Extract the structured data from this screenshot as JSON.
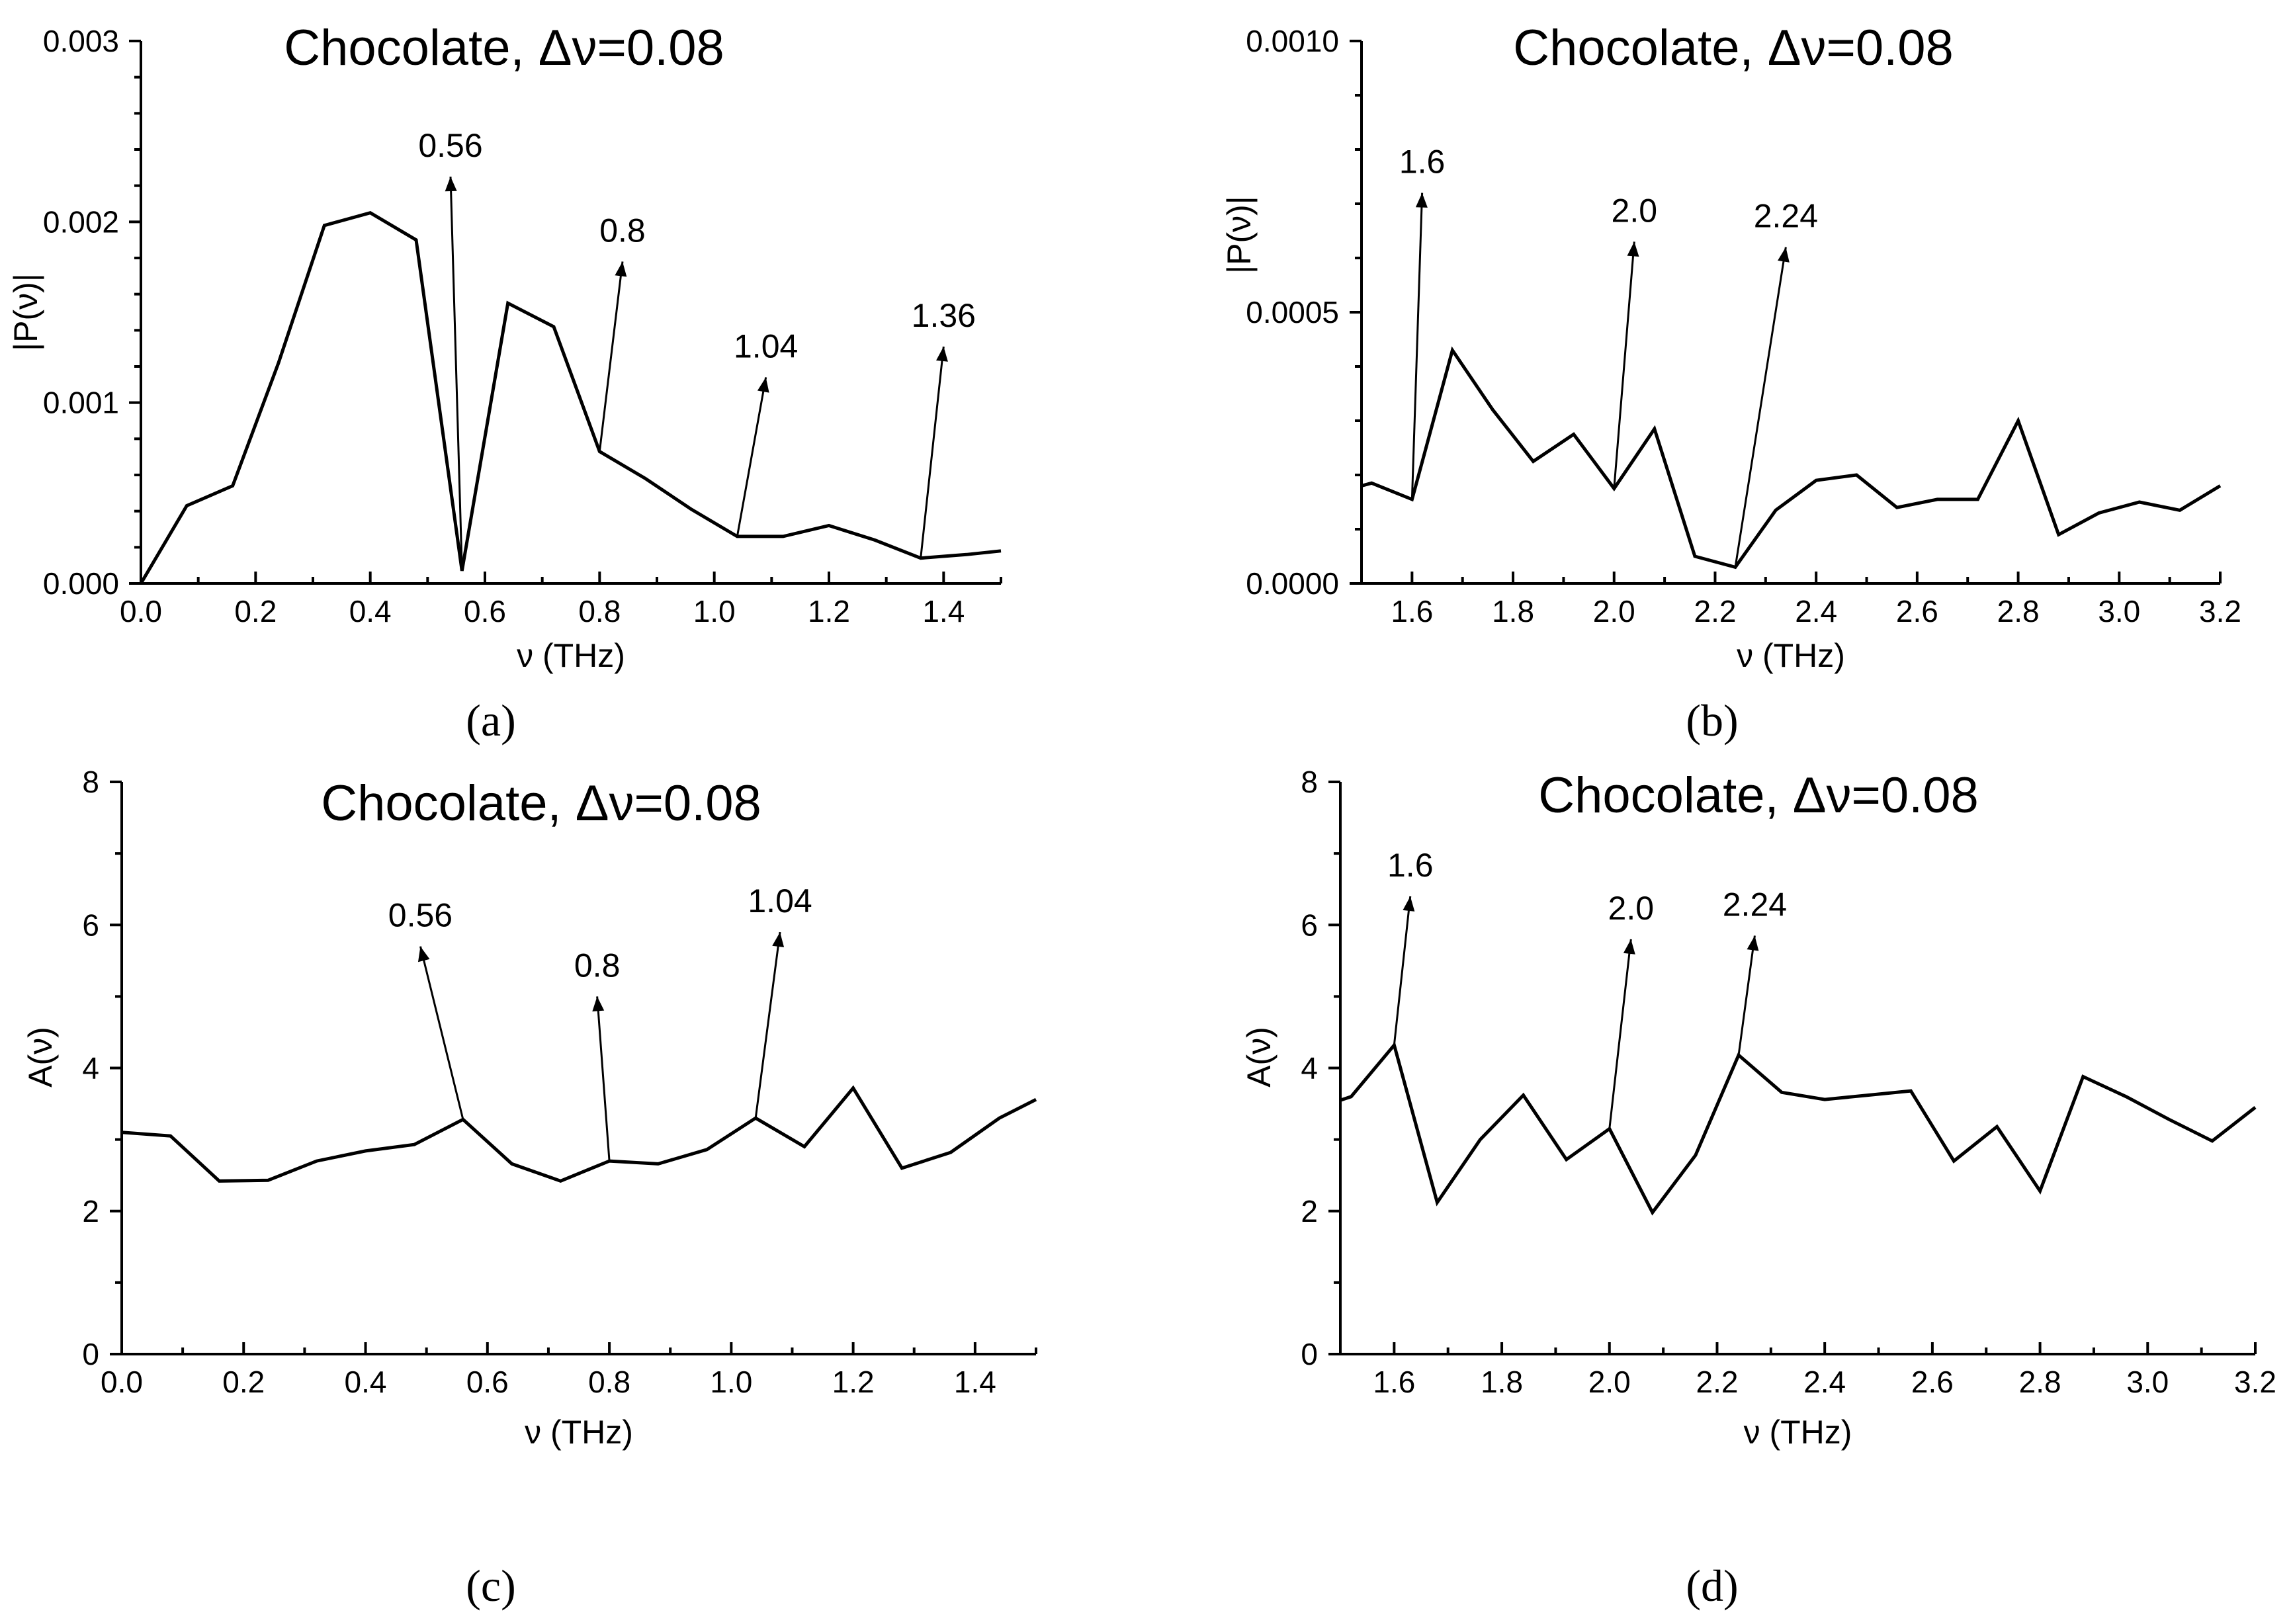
{
  "chart_data": [
    {
      "id": "a",
      "type": "line",
      "panel_label": "(a)",
      "title": "Chocolate, Δν=0.08",
      "xlabel": "ν (THz)",
      "ylabel": "|P(ν)|",
      "xlim": [
        0.0,
        1.5
      ],
      "ylim": [
        0.0,
        0.003
      ],
      "xticks": [
        0.0,
        0.2,
        0.4,
        0.6,
        0.8,
        1.0,
        1.2,
        1.4
      ],
      "xtick_labels": [
        "0.0",
        "0.2",
        "0.4",
        "0.6",
        "0.8",
        "1.0",
        "1.2",
        "1.4"
      ],
      "yticks": [
        0.0,
        0.001,
        0.002,
        0.003
      ],
      "ytick_labels": [
        "0.000",
        "0.001",
        "0.002",
        "0.003"
      ],
      "x": [
        0.0,
        0.08,
        0.16,
        0.24,
        0.32,
        0.4,
        0.48,
        0.56,
        0.64,
        0.72,
        0.8,
        0.88,
        0.96,
        1.04,
        1.12,
        1.2,
        1.28,
        1.36,
        1.44,
        1.5
      ],
      "y": [
        0.0,
        0.00043,
        0.00054,
        0.00122,
        0.00198,
        0.00205,
        0.0019,
        7e-05,
        0.00155,
        0.00142,
        0.00073,
        0.00058,
        0.00041,
        0.00026,
        0.00026,
        0.00032,
        0.00024,
        0.00014,
        0.00016,
        0.00018
      ],
      "annotations": [
        {
          "text": "0.56",
          "x": 0.56,
          "y": 7e-05,
          "tx": 0.54,
          "ty": 0.00225
        },
        {
          "text": "0.8",
          "x": 0.8,
          "y": 0.00073,
          "tx": 0.84,
          "ty": 0.00178
        },
        {
          "text": "1.04",
          "x": 1.04,
          "y": 0.00026,
          "tx": 1.09,
          "ty": 0.00114
        },
        {
          "text": "1.36",
          "x": 1.36,
          "y": 0.00014,
          "tx": 1.4,
          "ty": 0.00131
        }
      ]
    },
    {
      "id": "b",
      "type": "line",
      "panel_label": "(b)",
      "title": "Chocolate, Δν=0.08",
      "xlabel": "ν (THz)",
      "ylabel": "|P(ν)|",
      "xlim": [
        1.5,
        3.2
      ],
      "ylim": [
        0.0,
        0.001
      ],
      "xticks": [
        1.6,
        1.8,
        2.0,
        2.2,
        2.4,
        2.6,
        2.8,
        3.0,
        3.2
      ],
      "xtick_labels": [
        "1.6",
        "1.8",
        "2.0",
        "2.2",
        "2.4",
        "2.6",
        "2.8",
        "3.0",
        "3.2"
      ],
      "yticks": [
        0.0,
        0.0005,
        0.001
      ],
      "ytick_labels": [
        "0.0000",
        "0.0005",
        "0.0010"
      ],
      "x": [
        1.5,
        1.52,
        1.6,
        1.68,
        1.76,
        1.84,
        1.92,
        2.0,
        2.08,
        2.16,
        2.24,
        2.32,
        2.4,
        2.48,
        2.56,
        2.64,
        2.72,
        2.8,
        2.88,
        2.96,
        3.04,
        3.12,
        3.2
      ],
      "y": [
        0.00018,
        0.000185,
        0.000155,
        0.00043,
        0.00032,
        0.000225,
        0.000275,
        0.000175,
        0.000285,
        5e-05,
        3e-05,
        0.000135,
        0.00019,
        0.0002,
        0.00014,
        0.000155,
        0.000155,
        0.0003,
        9e-05,
        0.00013,
        0.00015,
        0.000135,
        0.00018
      ],
      "annotations": [
        {
          "text": "1.6",
          "x": 1.6,
          "y": 0.000155,
          "tx": 1.62,
          "ty": 0.00072
        },
        {
          "text": "2.0",
          "x": 2.0,
          "y": 0.000175,
          "tx": 2.04,
          "ty": 0.00063
        },
        {
          "text": "2.24",
          "x": 2.24,
          "y": 3e-05,
          "tx": 2.34,
          "ty": 0.00062
        }
      ]
    },
    {
      "id": "c",
      "type": "line",
      "panel_label": "(c)",
      "title": "Chocolate, Δν=0.08",
      "xlabel": "ν (THz)",
      "ylabel": "A(ν)",
      "xlim": [
        0.0,
        1.5
      ],
      "ylim": [
        0,
        8
      ],
      "xticks": [
        0.0,
        0.2,
        0.4,
        0.6,
        0.8,
        1.0,
        1.2,
        1.4
      ],
      "xtick_labels": [
        "0.0",
        "0.2",
        "0.4",
        "0.6",
        "0.8",
        "1.0",
        "1.2",
        "1.4"
      ],
      "yticks": [
        0,
        2,
        4,
        6,
        8
      ],
      "ytick_labels": [
        "0",
        "2",
        "4",
        "6",
        "8"
      ],
      "x": [
        0.0,
        0.08,
        0.16,
        0.24,
        0.32,
        0.4,
        0.48,
        0.56,
        0.64,
        0.72,
        0.8,
        0.88,
        0.96,
        1.04,
        1.12,
        1.2,
        1.28,
        1.36,
        1.44,
        1.5
      ],
      "y": [
        3.1,
        3.05,
        2.42,
        2.43,
        2.7,
        2.84,
        2.93,
        3.28,
        2.66,
        2.42,
        2.7,
        2.66,
        2.86,
        3.3,
        2.9,
        3.72,
        2.6,
        2.82,
        3.3,
        3.56
      ],
      "annotations": [
        {
          "text": "0.56",
          "x": 0.56,
          "y": 3.28,
          "tx": 0.49,
          "ty": 5.7
        },
        {
          "text": "0.8",
          "x": 0.8,
          "y": 2.7,
          "tx": 0.78,
          "ty": 5.0
        },
        {
          "text": "1.04",
          "x": 1.04,
          "y": 3.3,
          "tx": 1.08,
          "ty": 5.9
        }
      ]
    },
    {
      "id": "d",
      "type": "line",
      "panel_label": "(d)",
      "title": "Chocolate, Δν=0.08",
      "xlabel": "ν (THz)",
      "ylabel": "A(ν)",
      "xlim": [
        1.5,
        3.2
      ],
      "ylim": [
        0,
        8
      ],
      "xticks": [
        1.6,
        1.8,
        2.0,
        2.2,
        2.4,
        2.6,
        2.8,
        3.0,
        3.2
      ],
      "xtick_labels": [
        "1.6",
        "1.8",
        "2.0",
        "2.2",
        "2.4",
        "2.6",
        "2.8",
        "3.0",
        "3.2"
      ],
      "yticks": [
        0,
        2,
        4,
        6,
        8
      ],
      "ytick_labels": [
        "0",
        "2",
        "4",
        "6",
        "8"
      ],
      "x": [
        1.5,
        1.52,
        1.6,
        1.68,
        1.76,
        1.84,
        1.92,
        2.0,
        2.08,
        2.16,
        2.24,
        2.32,
        2.4,
        2.48,
        2.56,
        2.64,
        2.72,
        2.8,
        2.88,
        2.96,
        3.04,
        3.12,
        3.2
      ],
      "y": [
        3.55,
        3.6,
        4.32,
        2.12,
        3.0,
        3.62,
        2.72,
        3.15,
        1.98,
        2.78,
        4.18,
        3.66,
        3.56,
        3.62,
        3.68,
        2.7,
        3.18,
        2.28,
        3.88,
        3.6,
        3.28,
        2.98,
        3.45
      ],
      "annotations": [
        {
          "text": "1.6",
          "x": 1.6,
          "y": 4.32,
          "tx": 1.63,
          "ty": 6.4
        },
        {
          "text": "2.0",
          "x": 2.0,
          "y": 3.15,
          "tx": 2.04,
          "ty": 5.8
        },
        {
          "text": "2.24",
          "x": 2.24,
          "y": 4.18,
          "tx": 2.27,
          "ty": 5.85
        }
      ]
    }
  ]
}
